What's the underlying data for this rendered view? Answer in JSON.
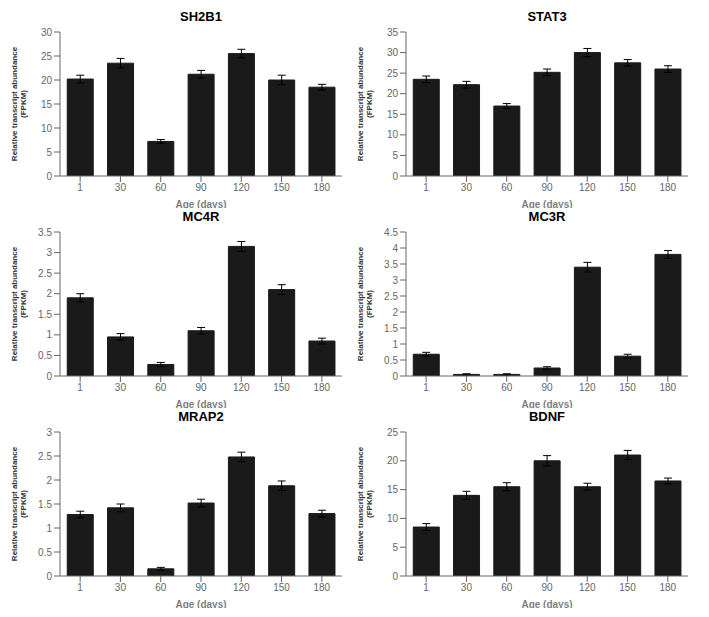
{
  "chart_data": [
    {
      "type": "bar",
      "title": "SH2B1",
      "xlabel": "Age (days)",
      "ylabel": "Relative transcript abundance\n(FPKM)",
      "categories": [
        "1",
        "30",
        "60",
        "90",
        "120",
        "150",
        "180"
      ],
      "values": [
        20.2,
        23.5,
        7.2,
        21.2,
        25.5,
        20.0,
        18.5
      ],
      "errors": [
        0.8,
        1.0,
        0.4,
        0.8,
        0.9,
        1.0,
        0.6
      ],
      "color": "#1a1a1a",
      "ylim": [
        0,
        30
      ],
      "yticks": [
        0,
        5,
        10,
        15,
        20,
        25,
        30
      ]
    },
    {
      "type": "bar",
      "title": "STAT3",
      "xlabel": "Age (days)",
      "ylabel": "Relative transcript abundance\n(FPKM)",
      "categories": [
        "1",
        "30",
        "60",
        "90",
        "120",
        "150",
        "180"
      ],
      "values": [
        23.5,
        22.2,
        17.0,
        25.2,
        30.0,
        27.5,
        26.0
      ],
      "errors": [
        0.8,
        0.8,
        0.6,
        0.8,
        1.0,
        0.8,
        0.8
      ],
      "color": "#1a1a1a",
      "ylim": [
        0,
        35
      ],
      "yticks": [
        0,
        5,
        10,
        15,
        20,
        25,
        30,
        35
      ]
    },
    {
      "type": "bar",
      "title": "MC4R",
      "xlabel": "Age (days)",
      "ylabel": "Relative transcript abundance\n(FPKM)",
      "categories": [
        "1",
        "30",
        "60",
        "90",
        "120",
        "150",
        "180"
      ],
      "values": [
        1.9,
        0.95,
        0.28,
        1.1,
        3.15,
        2.1,
        0.85
      ],
      "errors": [
        0.1,
        0.08,
        0.05,
        0.08,
        0.12,
        0.12,
        0.07
      ],
      "color": "#1a1a1a",
      "ylim": [
        0,
        3.5
      ],
      "yticks": [
        0,
        0.5,
        1,
        1.5,
        2,
        2.5,
        3,
        3.5
      ]
    },
    {
      "type": "bar",
      "title": "MC3R",
      "xlabel": "Age (days)",
      "ylabel": "Relative transcript abundance\n(FPKM)",
      "categories": [
        "1",
        "30",
        "60",
        "90",
        "120",
        "150",
        "180"
      ],
      "values": [
        0.68,
        0.05,
        0.05,
        0.25,
        3.4,
        0.62,
        3.8
      ],
      "errors": [
        0.06,
        0.02,
        0.02,
        0.04,
        0.15,
        0.06,
        0.12
      ],
      "color": "#1a1a1a",
      "ylim": [
        0,
        4.5
      ],
      "yticks": [
        0,
        0.5,
        1,
        1.5,
        2,
        2.5,
        3,
        3.5,
        4,
        4.5
      ]
    },
    {
      "type": "bar",
      "title": "MRAP2",
      "xlabel": "Age (days)",
      "ylabel": "Relative transcript abundance\n(FPKM)",
      "categories": [
        "1",
        "30",
        "60",
        "90",
        "120",
        "150",
        "180"
      ],
      "values": [
        1.28,
        1.42,
        0.15,
        1.52,
        2.48,
        1.88,
        1.3
      ],
      "errors": [
        0.07,
        0.08,
        0.03,
        0.08,
        0.1,
        0.1,
        0.07
      ],
      "color": "#1a1a1a",
      "ylim": [
        0,
        3
      ],
      "yticks": [
        0,
        0.5,
        1,
        1.5,
        2,
        2.5,
        3
      ]
    },
    {
      "type": "bar",
      "title": "BDNF",
      "xlabel": "Age (days)",
      "ylabel": "Relative transcript abundance\n(FPKM)",
      "categories": [
        "1",
        "30",
        "60",
        "90",
        "120",
        "150",
        "180"
      ],
      "values": [
        8.5,
        14.0,
        15.5,
        20.0,
        15.5,
        21.0,
        16.5
      ],
      "errors": [
        0.6,
        0.7,
        0.7,
        0.9,
        0.6,
        0.8,
        0.5
      ],
      "color": "#1a1a1a",
      "ylim": [
        0,
        25
      ],
      "yticks": [
        0,
        5,
        10,
        15,
        20,
        25
      ]
    }
  ]
}
